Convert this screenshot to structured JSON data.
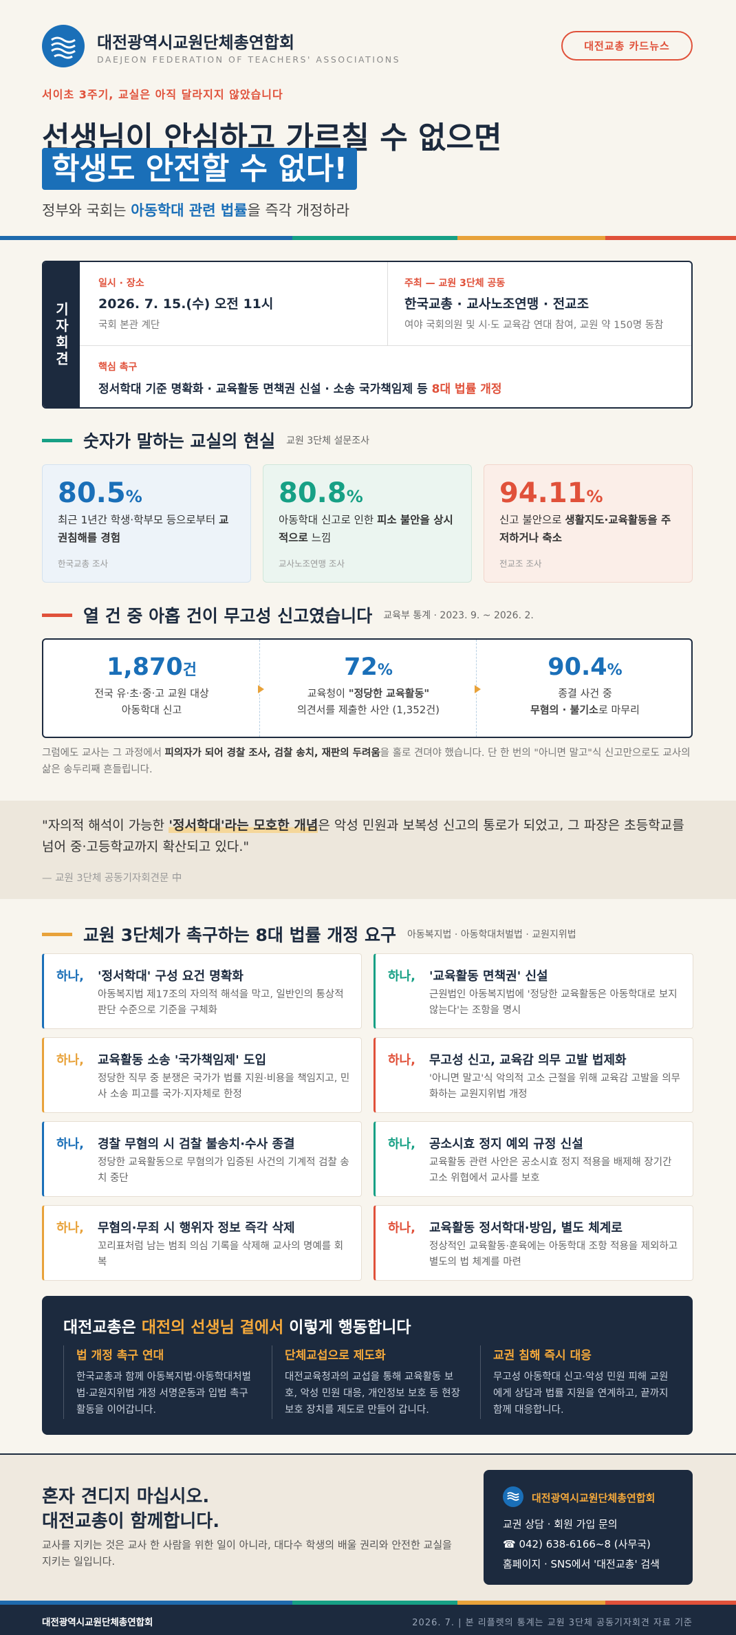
{
  "header": {
    "org_name": "대전광역시교원단체총연합회",
    "org_name_en": "DAEJEON FEDERATION OF TEACHERS' ASSOCIATIONS",
    "button": "대전교총 카드뉴스"
  },
  "hero": {
    "kicker": "서이초 3주기, 교실은 아직 달라지지 않았습니다",
    "headline_1": "선생님이 안심하고 가르칠 수 없으면",
    "headline_2": "학생도 안전할 수 없다!",
    "subtitle": [
      "정부와 국회는 ",
      "아동학대 관련 법률",
      "을 즉각 개정하라"
    ]
  },
  "press": {
    "label": "기자회견",
    "date_label": "일시 · 장소",
    "date": "2026. 7. 15.(수) 오전 11시",
    "place": "국회 본관 계단",
    "host_label": "주최 — 교원 3단체 공동",
    "hosts": "한국교총 · 교사노조연맹 · 전교조",
    "attendees": "여야 국회의원 및 시·도 교육감 연대 참여, 교원 약 150명 동참",
    "demand_label": "핵심 촉구",
    "demand": [
      "정서학대 기준 명확화 · 교육활동 면책권 신설 · 소송 국가책임제 등 ",
      "8대 법률 개정"
    ]
  },
  "survey": {
    "title": "숫자가 말하는 교실의 현실",
    "note": "교원 3단체 설문조사",
    "cards": [
      {
        "value": 80.5,
        "unit": "%",
        "text": [
          "최근 1년간 학생·학부모 등으로부터 ",
          "교권침해를 경험"
        ],
        "source": "한국교총 조사"
      },
      {
        "value": 80.8,
        "unit": "%",
        "text": [
          "아동학대 신고로 인한 ",
          "피소 불안을 상시적으로",
          " 느낌"
        ],
        "source": "교사노조연맹 조사"
      },
      {
        "value": 94.11,
        "unit": "%",
        "text": [
          "신고 불안으로 ",
          "생활지도·교육활동을 주저하거나 축소"
        ],
        "source": "전교조 조사"
      }
    ]
  },
  "reports": {
    "title": "열 건 중 아홉 건이 무고성 신고였습니다",
    "note": "교육부 통계 · 2023. 9. ~ 2026. 2.",
    "items": [
      {
        "value": "1,870",
        "unit": "건",
        "text": [
          "전국 유·초·중·고 교원 대상",
          "아동학대 신고"
        ]
      },
      {
        "value": 72,
        "unit": "%",
        "text": [
          "교육청이 ",
          "\"정당한 교육활동\"",
          "의견서를 제출한 사안 (1,352건)"
        ]
      },
      {
        "value": 90.4,
        "unit": "%",
        "text": [
          "종결 사건 중",
          "무혐의 · 불기소",
          "로 마무리"
        ]
      }
    ],
    "paragraph": [
      "그럼에도 교사는 그 과정에서 ",
      "피의자가 되어 경찰 조사, 검찰 송치, 재판의 두려움",
      "을 홀로 견뎌야 했습니다. 단 한 번의 \"아니면 말고\"식 신고만으로도 교사의 삶은 송두리째 흔들립니다."
    ]
  },
  "quote": {
    "text": [
      "\"자의적 해석이 가능한 ",
      "'정서학대'라는 모호한 개념",
      "은 악성 민원과 보복성 신고의 통로가 되었고, 그 파장은 초등학교를 넘어 중·고등학교까지 확산되고 있다.\""
    ],
    "source": "— 교원 3단체 공동기자회견문 中"
  },
  "laws": {
    "title": "교원 3단체가 촉구하는 8대 법률 개정 요구",
    "note": "아동복지법 · 아동학대처벌법 · 교원지위법",
    "items": [
      {
        "prefix": "하나,",
        "title": "'정서학대' 구성 요건 명확화",
        "desc": "아동복지법 제17조의 자의적 해석을 막고, 일반인의 통상적 판단 수준으로 기준을 구체화"
      },
      {
        "prefix": "하나,",
        "title": "'교육활동 면책권' 신설",
        "desc": "근원법인 아동복지법에 '정당한 교육활동은 아동학대로 보지 않는다'는 조항을 명시"
      },
      {
        "prefix": "하나,",
        "title": "교육활동 소송 '국가책임제' 도입",
        "desc": "정당한 직무 중 분쟁은 국가가 법률 지원·비용을 책임지고, 민사 소송 피고를 국가·지자체로 한정"
      },
      {
        "prefix": "하나,",
        "title": "무고성 신고, 교육감 의무 고발 법제화",
        "desc": "'아니면 말고'식 악의적 고소 근절을 위해 교육감 고발을 의무화하는 교원지위법 개정"
      },
      {
        "prefix": "하나,",
        "title": "경찰 무혐의 시 검찰 불송치·수사 종결",
        "desc": "정당한 교육활동으로 무혐의가 입증된 사건의 기계적 검찰 송치 중단"
      },
      {
        "prefix": "하나,",
        "title": "공소시효 정지 예외 규정 신설",
        "desc": "교육활동 관련 사안은 공소시효 정지 적용을 배제해 장기간 고소 위협에서 교사를 보호"
      },
      {
        "prefix": "하나,",
        "title": "무혐의·무죄 시 행위자 정보 즉각 삭제",
        "desc": "꼬리표처럼 남는 범죄 의심 기록을 삭제해 교사의 명예를 회복"
      },
      {
        "prefix": "하나,",
        "title": "교육활동 정서학대·방임, 별도 체계로",
        "desc": "정상적인 교육활동·훈육에는 아동학대 조항 적용을 제외하고 별도의 법 체계를 마련"
      }
    ]
  },
  "action": {
    "title": [
      "대전교총은 ",
      "대전의 선생님 곁에서",
      " 이렇게 행동합니다"
    ],
    "items": [
      {
        "title": "법 개정 촉구 연대",
        "desc": "한국교총과 함께 아동복지법·아동학대처벌법·교원지위법 개정 서명운동과 입법 촉구 활동을 이어갑니다."
      },
      {
        "title": "단체교섭으로 제도화",
        "desc": "대전교육청과의 교섭을 통해 교육활동 보호, 악성 민원 대응, 개인정보 보호 등 현장 보호 장치를 제도로 만들어 갑니다."
      },
      {
        "title": "교권 침해 즉시 대응",
        "desc": "무고성 아동학대 신고·악성 민원 피해 교원에게 상담과 법률 지원을 연계하고, 끝까지 함께 대응합니다."
      }
    ]
  },
  "closing": {
    "headline_1": "혼자 견디지 마십시오.",
    "headline_2": "대전교총이 함께합니다.",
    "text": "교사를 지키는 것은 교사 한 사람을 위한 일이 아니라, 대다수 학생의 배울 권리와 안전한 교실을 지키는 일입니다.",
    "contact": {
      "org": "대전광역시교원단체총연합회",
      "line1": "교권 상담 · 회원 가입 문의",
      "phone": "☎ 042) 638-6166~8 (사무국)",
      "line3": "홈페이지 · SNS에서 '대전교총' 검색"
    }
  },
  "footer": {
    "org": "대전광역시교원단체총연합회",
    "note": "2026. 7. | 본 리플렛의 통계는 교원 3단체 공동기자회견 자료 기준"
  }
}
